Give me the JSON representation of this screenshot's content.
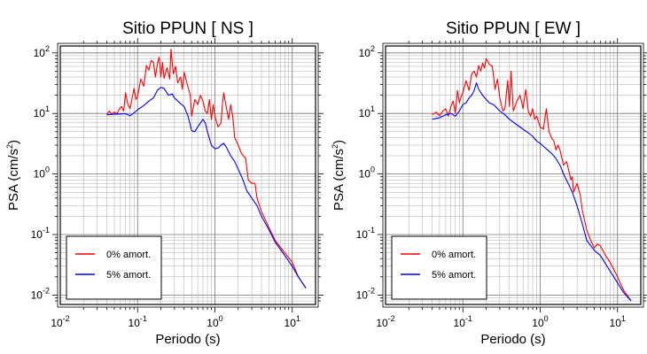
{
  "chart_data": [
    {
      "type": "line",
      "title": "Sitio PPUN [ NS ]",
      "xlabel": "Periodo (s)",
      "ylabel": "PSA (cm/s",
      "ylabel_sup": "2",
      "ylabel_close": ")",
      "xscale": "log",
      "yscale": "log",
      "xlim": [
        0.01,
        20
      ],
      "ylim": [
        0.007,
        130
      ],
      "grid": true,
      "legend_position": "bottom-left",
      "x_ticks": [
        {
          "value": 0.01,
          "base": "10",
          "exp": "-2"
        },
        {
          "value": 0.1,
          "base": "10",
          "exp": "-1"
        },
        {
          "value": 1,
          "base": "10",
          "exp": "0"
        },
        {
          "value": 10,
          "base": "10",
          "exp": "1"
        }
      ],
      "y_ticks": [
        {
          "value": 0.01,
          "base": "10",
          "exp": "-2"
        },
        {
          "value": 0.1,
          "base": "10",
          "exp": "-1"
        },
        {
          "value": 1,
          "base": "10",
          "exp": "0"
        },
        {
          "value": 10,
          "base": "10",
          "exp": "1"
        },
        {
          "value": 100,
          "base": "10",
          "exp": "2"
        }
      ],
      "series": [
        {
          "name": "0% amort.",
          "color": "#ff0000",
          "points": [
            [
              0.04,
              9.6
            ],
            [
              0.043,
              11
            ],
            [
              0.046,
              9.8
            ],
            [
              0.05,
              10.5
            ],
            [
              0.054,
              9.9
            ],
            [
              0.058,
              11.8
            ],
            [
              0.062,
              13
            ],
            [
              0.066,
              11
            ],
            [
              0.07,
              22
            ],
            [
              0.075,
              14
            ],
            [
              0.08,
              12
            ],
            [
              0.085,
              18
            ],
            [
              0.09,
              26
            ],
            [
              0.095,
              17
            ],
            [
              0.1,
              19
            ],
            [
              0.11,
              37
            ],
            [
              0.12,
              28
            ],
            [
              0.13,
              62
            ],
            [
              0.14,
              52
            ],
            [
              0.15,
              75
            ],
            [
              0.16,
              70
            ],
            [
              0.17,
              40
            ],
            [
              0.18,
              65
            ],
            [
              0.19,
              85
            ],
            [
              0.2,
              40
            ],
            [
              0.21,
              70
            ],
            [
              0.22,
              38
            ],
            [
              0.24,
              57
            ],
            [
              0.26,
              37
            ],
            [
              0.27,
              115
            ],
            [
              0.29,
              45
            ],
            [
              0.31,
              60
            ],
            [
              0.33,
              32
            ],
            [
              0.36,
              40
            ],
            [
              0.38,
              25
            ],
            [
              0.4,
              48
            ],
            [
              0.44,
              30
            ],
            [
              0.48,
              20
            ],
            [
              0.5,
              9
            ],
            [
              0.55,
              17
            ],
            [
              0.6,
              14
            ],
            [
              0.65,
              20
            ],
            [
              0.7,
              16
            ],
            [
              0.75,
              11
            ],
            [
              0.8,
              10
            ],
            [
              0.85,
              17
            ],
            [
              0.9,
              8
            ],
            [
              0.95,
              14
            ],
            [
              1.0,
              9
            ],
            [
              1.1,
              6
            ],
            [
              1.2,
              7
            ],
            [
              1.25,
              14
            ],
            [
              1.3,
              22
            ],
            [
              1.4,
              13
            ],
            [
              1.5,
              8
            ],
            [
              1.6,
              14
            ],
            [
              1.7,
              9
            ],
            [
              1.8,
              4
            ],
            [
              2.0,
              3
            ],
            [
              2.2,
              2.2
            ],
            [
              2.5,
              1.8
            ],
            [
              2.7,
              0.8
            ],
            [
              3.0,
              0.7
            ],
            [
              3.3,
              0.7
            ],
            [
              3.5,
              0.4
            ],
            [
              4.0,
              0.24
            ],
            [
              5.0,
              0.13
            ],
            [
              6.0,
              0.08
            ],
            [
              8.0,
              0.05
            ],
            [
              10.0,
              0.035
            ],
            [
              12.0,
              0.02
            ],
            [
              15.0,
              0.013
            ]
          ]
        },
        {
          "name": "5% amort.",
          "color": "#0000ff",
          "points": [
            [
              0.04,
              9.5
            ],
            [
              0.05,
              9.7
            ],
            [
              0.06,
              9.8
            ],
            [
              0.07,
              9.9
            ],
            [
              0.08,
              9.2
            ],
            [
              0.09,
              10.2
            ],
            [
              0.1,
              11.5
            ],
            [
              0.12,
              13.5
            ],
            [
              0.14,
              16
            ],
            [
              0.16,
              18
            ],
            [
              0.18,
              24
            ],
            [
              0.2,
              27
            ],
            [
              0.22,
              26
            ],
            [
              0.25,
              20
            ],
            [
              0.28,
              21
            ],
            [
              0.3,
              18
            ],
            [
              0.35,
              15
            ],
            [
              0.4,
              13
            ],
            [
              0.45,
              9
            ],
            [
              0.5,
              5.2
            ],
            [
              0.55,
              5
            ],
            [
              0.6,
              6
            ],
            [
              0.7,
              8
            ],
            [
              0.75,
              7
            ],
            [
              0.8,
              5
            ],
            [
              0.9,
              3
            ],
            [
              1.0,
              2.6
            ],
            [
              1.1,
              2.7
            ],
            [
              1.2,
              3
            ],
            [
              1.3,
              3.2
            ],
            [
              1.4,
              2.8
            ],
            [
              1.6,
              2
            ],
            [
              1.8,
              1.6
            ],
            [
              2.0,
              1.2
            ],
            [
              2.3,
              0.8
            ],
            [
              2.6,
              0.52
            ],
            [
              3.0,
              0.4
            ],
            [
              3.5,
              0.3
            ],
            [
              4.0,
              0.2
            ],
            [
              5.0,
              0.12
            ],
            [
              6.0,
              0.075
            ],
            [
              8.0,
              0.045
            ],
            [
              10.0,
              0.03
            ],
            [
              12.0,
              0.02
            ],
            [
              15.0,
              0.013
            ]
          ]
        }
      ]
    },
    {
      "type": "line",
      "title": "Sitio PPUN [ EW ]",
      "xlabel": "Periodo (s)",
      "ylabel": "PSA (cm/s",
      "ylabel_sup": "2",
      "ylabel_close": ")",
      "xscale": "log",
      "yscale": "log",
      "xlim": [
        0.01,
        20
      ],
      "ylim": [
        0.007,
        130
      ],
      "grid": true,
      "legend_position": "bottom-left",
      "x_ticks": [
        {
          "value": 0.01,
          "base": "10",
          "exp": "-2"
        },
        {
          "value": 0.1,
          "base": "10",
          "exp": "-1"
        },
        {
          "value": 1,
          "base": "10",
          "exp": "0"
        },
        {
          "value": 10,
          "base": "10",
          "exp": "1"
        }
      ],
      "y_ticks": [
        {
          "value": 0.01,
          "base": "10",
          "exp": "-2"
        },
        {
          "value": 0.1,
          "base": "10",
          "exp": "-1"
        },
        {
          "value": 1,
          "base": "10",
          "exp": "0"
        },
        {
          "value": 10,
          "base": "10",
          "exp": "1"
        },
        {
          "value": 100,
          "base": "10",
          "exp": "2"
        }
      ],
      "series": [
        {
          "name": "0% amort.",
          "color": "#ff0000",
          "points": [
            [
              0.04,
              9.5
            ],
            [
              0.045,
              10.5
            ],
            [
              0.05,
              9.2
            ],
            [
              0.055,
              11
            ],
            [
              0.06,
              12
            ],
            [
              0.065,
              9
            ],
            [
              0.07,
              13
            ],
            [
              0.075,
              16
            ],
            [
              0.08,
              10
            ],
            [
              0.085,
              24
            ],
            [
              0.09,
              15
            ],
            [
              0.095,
              19
            ],
            [
              0.1,
              22
            ],
            [
              0.11,
              35
            ],
            [
              0.12,
              24
            ],
            [
              0.13,
              45
            ],
            [
              0.14,
              50
            ],
            [
              0.15,
              40
            ],
            [
              0.16,
              62
            ],
            [
              0.17,
              50
            ],
            [
              0.18,
              68
            ],
            [
              0.19,
              56
            ],
            [
              0.2,
              80
            ],
            [
              0.22,
              65
            ],
            [
              0.24,
              60
            ],
            [
              0.25,
              40
            ],
            [
              0.26,
              25
            ],
            [
              0.28,
              37
            ],
            [
              0.3,
              18
            ],
            [
              0.33,
              11
            ],
            [
              0.35,
              12
            ],
            [
              0.38,
              35
            ],
            [
              0.4,
              13
            ],
            [
              0.42,
              50
            ],
            [
              0.45,
              11
            ],
            [
              0.5,
              16
            ],
            [
              0.55,
              20
            ],
            [
              0.6,
              12
            ],
            [
              0.65,
              25
            ],
            [
              0.7,
              11
            ],
            [
              0.75,
              9
            ],
            [
              0.8,
              12
            ],
            [
              0.85,
              8
            ],
            [
              0.9,
              9
            ],
            [
              1.0,
              6
            ],
            [
              1.1,
              5.5
            ],
            [
              1.2,
              12
            ],
            [
              1.3,
              5
            ],
            [
              1.4,
              4
            ],
            [
              1.5,
              3.5
            ],
            [
              1.6,
              2.5
            ],
            [
              1.7,
              3
            ],
            [
              1.8,
              2.5
            ],
            [
              2.0,
              1.4
            ],
            [
              2.2,
              1.6
            ],
            [
              2.5,
              0.8
            ],
            [
              2.6,
              0.9
            ],
            [
              2.7,
              0.5
            ],
            [
              3.0,
              0.7
            ],
            [
              3.3,
              0.45
            ],
            [
              3.5,
              0.25
            ],
            [
              4.0,
              0.12
            ],
            [
              4.5,
              0.08
            ],
            [
              5.0,
              0.06
            ],
            [
              5.5,
              0.07
            ],
            [
              6.0,
              0.065
            ],
            [
              7.0,
              0.045
            ],
            [
              8.0,
              0.035
            ],
            [
              10.0,
              0.02
            ],
            [
              12.0,
              0.012
            ],
            [
              15.0,
              0.008
            ]
          ]
        },
        {
          "name": "5% amort.",
          "color": "#0000ff",
          "points": [
            [
              0.04,
              8
            ],
            [
              0.05,
              8.5
            ],
            [
              0.06,
              9.5
            ],
            [
              0.07,
              10
            ],
            [
              0.08,
              9
            ],
            [
              0.09,
              11
            ],
            [
              0.1,
              14
            ],
            [
              0.11,
              15
            ],
            [
              0.12,
              18
            ],
            [
              0.13,
              20
            ],
            [
              0.14,
              24
            ],
            [
              0.15,
              32
            ],
            [
              0.16,
              25
            ],
            [
              0.18,
              20
            ],
            [
              0.2,
              17
            ],
            [
              0.22,
              15
            ],
            [
              0.25,
              14
            ],
            [
              0.3,
              11
            ],
            [
              0.35,
              9.5
            ],
            [
              0.4,
              8
            ],
            [
              0.5,
              6.5
            ],
            [
              0.6,
              5.5
            ],
            [
              0.7,
              4.8
            ],
            [
              0.8,
              4.2
            ],
            [
              0.9,
              3.5
            ],
            [
              1.0,
              3.2
            ],
            [
              1.2,
              2.6
            ],
            [
              1.4,
              2.2
            ],
            [
              1.6,
              1.8
            ],
            [
              1.8,
              1.4
            ],
            [
              2.0,
              1
            ],
            [
              2.3,
              0.7
            ],
            [
              2.6,
              0.5
            ],
            [
              3.0,
              0.3
            ],
            [
              3.5,
              0.15
            ],
            [
              4.0,
              0.08
            ],
            [
              5.0,
              0.055
            ],
            [
              6.0,
              0.045
            ],
            [
              8.0,
              0.025
            ],
            [
              10.0,
              0.016
            ],
            [
              12.0,
              0.011
            ],
            [
              15.0,
              0.008
            ]
          ]
        }
      ]
    }
  ]
}
